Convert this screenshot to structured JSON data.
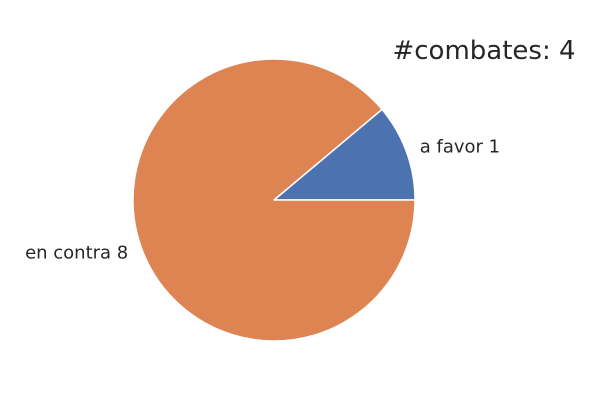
{
  "chart_data": {
    "type": "pie",
    "title": "#combates: 4",
    "categories": [
      "a favor",
      "en contra"
    ],
    "values": [
      1,
      8
    ],
    "labels": [
      "a favor 1",
      "en contra 8"
    ],
    "colors": [
      "#4c72b0",
      "#dd8452"
    ],
    "start_angle_deg": 0,
    "direction": "counterclockwise",
    "legend": "none"
  }
}
